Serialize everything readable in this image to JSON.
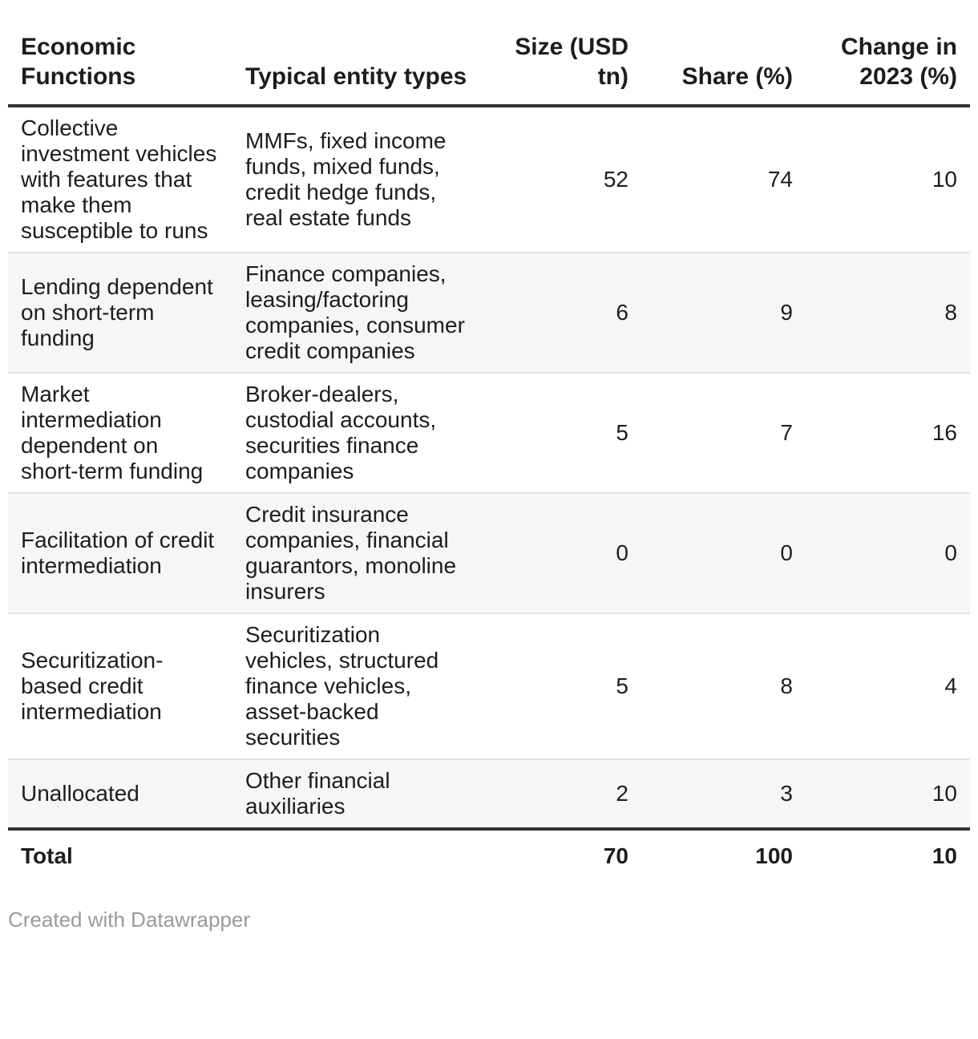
{
  "chart_data": {
    "type": "table",
    "columns": [
      {
        "key": "function",
        "label": "Economic Functions",
        "align": "left"
      },
      {
        "key": "entities",
        "label": "Typical entity types",
        "align": "left"
      },
      {
        "key": "size",
        "label": "Size (USD tn)",
        "align": "right"
      },
      {
        "key": "share",
        "label": "Share (%)",
        "align": "right"
      },
      {
        "key": "change",
        "label": "Change in 2023 (%)",
        "align": "right"
      }
    ],
    "rows": [
      {
        "function": "Collective investment vehicles with features that make them susceptible to runs",
        "entities": "MMFs, fixed income funds, mixed funds, credit hedge funds, real estate funds",
        "size": "52",
        "share": "74",
        "change": "10"
      },
      {
        "function": "Lending dependent on short-term funding",
        "entities": "Finance companies, leasing/factoring companies, consumer credit companies",
        "size": "6",
        "share": "9",
        "change": "8"
      },
      {
        "function": "Market intermediation dependent on short-term funding",
        "entities": "Broker-dealers, custodial accounts, securities finance companies",
        "size": "5",
        "share": "7",
        "change": "16"
      },
      {
        "function": "Facilitation of credit intermediation",
        "entities": "Credit insurance companies, financial guarantors, monoline insurers",
        "size": "0",
        "share": "0",
        "change": "0"
      },
      {
        "function": "Securitization-based credit intermediation",
        "entities": "Securitization vehicles, structured finance vehicles, asset-backed securities",
        "size": "5",
        "share": "8",
        "change": "4"
      },
      {
        "function": "Unallocated",
        "entities": "Other financial auxiliaries",
        "size": "2",
        "share": "3",
        "change": "10"
      }
    ],
    "total": {
      "label": "Total",
      "size": "70",
      "share": "100",
      "change": "10"
    },
    "layout_hints": {
      "striped_rows": "even rows shaded",
      "header_border": "thick dark rule below header and above total row"
    }
  },
  "footer": {
    "attribution": "Created with Datawrapper"
  },
  "colors": {
    "text": "#1d1d1d",
    "stripe": "#f6f6f6",
    "row_divider": "#e3e3e3",
    "strong_border": "#333333",
    "footer_text": "#9a9a9a"
  }
}
